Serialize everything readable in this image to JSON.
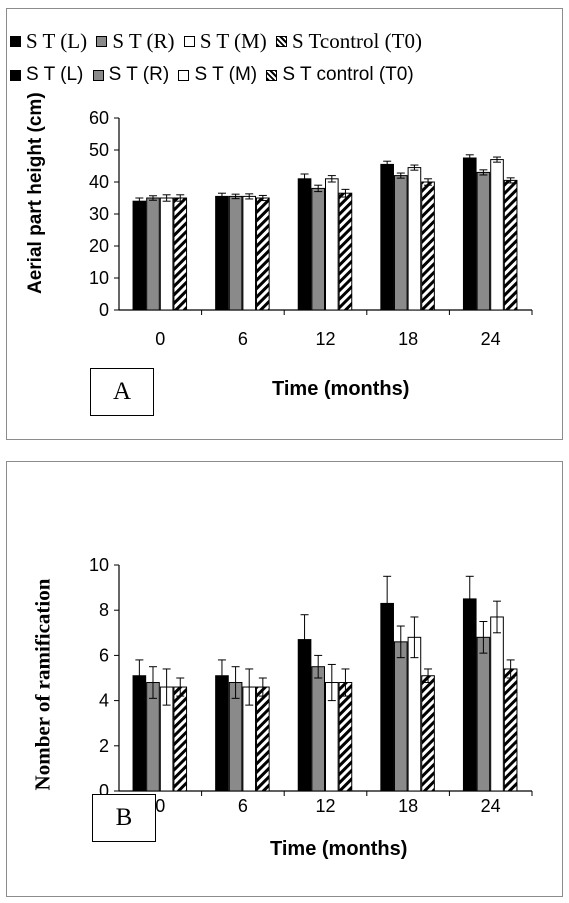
{
  "panels": [
    {
      "letter": "A",
      "legend": [
        "S T (L)",
        "S T (R)",
        "S T (M)",
        "S Tcontrol (T0)"
      ],
      "chart_data": {
        "type": "bar",
        "categories": [
          "0",
          "6",
          "12",
          "18",
          "24"
        ],
        "series": [
          {
            "name": "S T (L)",
            "values": [
              34,
              35.5,
              41,
              45.5,
              47.5
            ],
            "errors": [
              1,
              1,
              1.5,
              1,
              1
            ],
            "color": "#000000"
          },
          {
            "name": "S T (R)",
            "values": [
              35,
              35.5,
              38,
              42,
              43
            ],
            "errors": [
              0.7,
              0.7,
              1,
              0.8,
              0.8
            ],
            "color": "#8a8a8a"
          },
          {
            "name": "S T (M)",
            "values": [
              35,
              35.5,
              41,
              44.5,
              47
            ],
            "errors": [
              1,
              0.8,
              1,
              0.8,
              0.8
            ],
            "color": "#ffffff"
          },
          {
            "name": "S Tcontrol (T0)",
            "values": [
              35,
              35,
              36.5,
              40,
              40.5
            ],
            "errors": [
              1,
              0.8,
              1.2,
              1,
              0.8
            ],
            "color": "hatch"
          }
        ],
        "title": "",
        "xlabel": "Time (months)",
        "ylabel": "Aerial part height (cm)",
        "ylim": [
          0,
          60
        ],
        "yticks": [
          "0",
          "10",
          "20",
          "30",
          "40",
          "50",
          "60"
        ],
        "grid": false,
        "legend_position": "top"
      }
    },
    {
      "letter": "B",
      "legend": [
        "S T (L)",
        "S T (R)",
        "S T (M)",
        "S T control (T0)"
      ],
      "chart_data": {
        "type": "bar",
        "categories": [
          "0",
          "6",
          "12",
          "18",
          "24"
        ],
        "series": [
          {
            "name": "S T (L)",
            "values": [
              5.1,
              5.1,
              6.7,
              8.3,
              8.5
            ],
            "errors": [
              0.7,
              0.7,
              1.1,
              1.2,
              1.0
            ],
            "color": "#000000"
          },
          {
            "name": "S T (R)",
            "values": [
              4.8,
              4.8,
              5.5,
              6.6,
              6.8
            ],
            "errors": [
              0.7,
              0.7,
              0.5,
              0.7,
              0.7
            ],
            "color": "#8a8a8a"
          },
          {
            "name": "S T (M)",
            "values": [
              4.6,
              4.6,
              4.8,
              6.8,
              7.7
            ],
            "errors": [
              0.8,
              0.8,
              0.8,
              0.9,
              0.7
            ],
            "color": "#ffffff"
          },
          {
            "name": "S T control (T0)",
            "values": [
              4.6,
              4.6,
              4.8,
              5.1,
              5.4
            ],
            "errors": [
              0.4,
              0.4,
              0.6,
              0.3,
              0.4
            ],
            "color": "hatch"
          }
        ],
        "title": "",
        "xlabel": "Time (months)",
        "ylabel": "Nomber of ramification",
        "ylim": [
          0,
          10
        ],
        "yticks": [
          "0",
          "2",
          "4",
          "6",
          "8",
          "10"
        ],
        "grid": false,
        "legend_position": "top"
      }
    }
  ]
}
